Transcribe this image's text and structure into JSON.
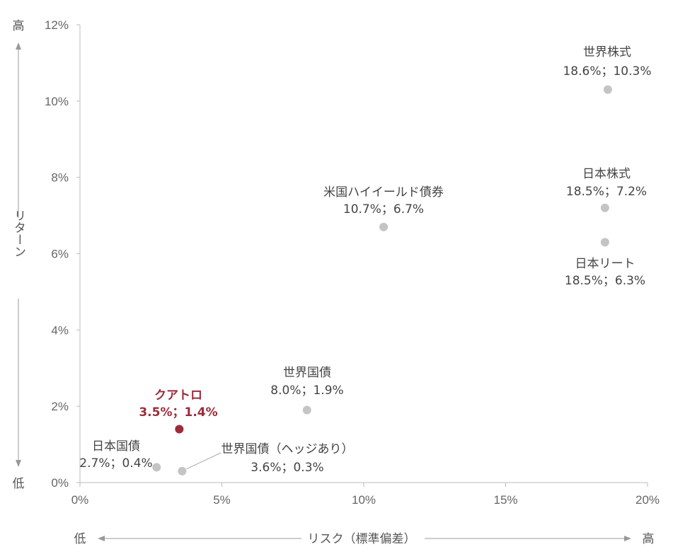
{
  "chart_data": {
    "type": "scatter",
    "x_axis": {
      "range": [
        0,
        20
      ],
      "ticks": [
        0,
        5,
        10,
        15,
        20
      ],
      "tick_labels": [
        "0%",
        "5%",
        "10%",
        "15%",
        "20%"
      ],
      "label": "リスク（標準偏差）",
      "low_label": "低",
      "high_label": "高"
    },
    "y_axis": {
      "range": [
        0,
        12
      ],
      "ticks": [
        0,
        2,
        4,
        6,
        8,
        10,
        12
      ],
      "tick_labels": [
        "0%",
        "2%",
        "4%",
        "6%",
        "8%",
        "10%",
        "12%"
      ],
      "label": "リターン",
      "low_label": "低",
      "high_label": "高"
    },
    "grid": false,
    "colors": {
      "point": "#c4c4c4",
      "highlight": "#9b2c3a",
      "axis": "#bbbbbb"
    },
    "points": [
      {
        "name": "世界株式",
        "x": 18.6,
        "y": 10.3,
        "value_label": "18.6%；10.3%"
      },
      {
        "name": "日本株式",
        "x": 18.5,
        "y": 7.2,
        "value_label": "18.5%；7.2%"
      },
      {
        "name": "日本リート",
        "x": 18.5,
        "y": 6.3,
        "value_label": "18.5%；6.3%"
      },
      {
        "name": "米国ハイイールド債券",
        "x": 10.7,
        "y": 6.7,
        "value_label": "10.7%；6.7%"
      },
      {
        "name": "世界国債",
        "x": 8.0,
        "y": 1.9,
        "value_label": "8.0%；1.9%"
      },
      {
        "name": "クアトロ",
        "x": 3.5,
        "y": 1.4,
        "value_label": "3.5%；1.4%",
        "highlight": true
      },
      {
        "name": "日本国債",
        "x": 2.7,
        "y": 0.4,
        "value_label": "2.7%；0.4%"
      },
      {
        "name": "世界国債（ヘッジあり）",
        "x": 3.6,
        "y": 0.3,
        "value_label": "3.6%；0.3%"
      }
    ]
  }
}
